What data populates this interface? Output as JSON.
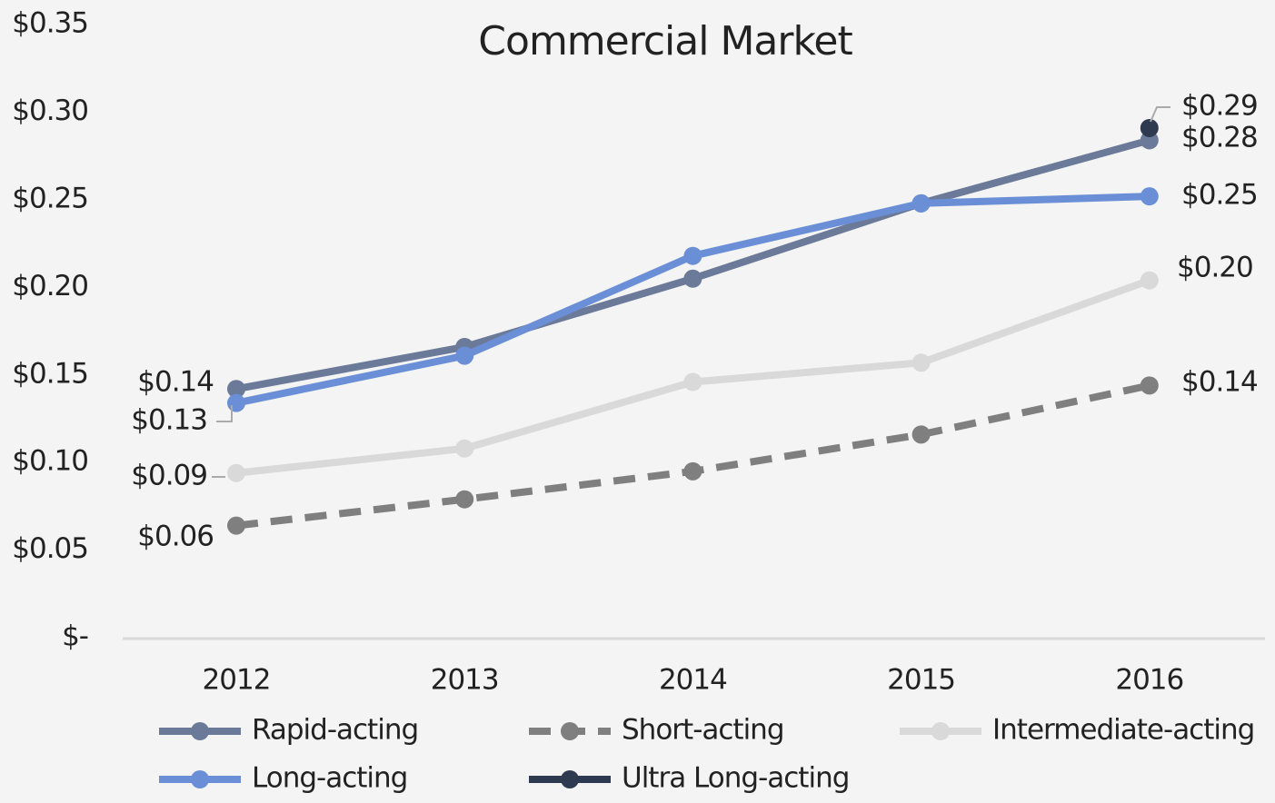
{
  "chart_data": {
    "type": "line",
    "title": "Commercial Market",
    "categories": [
      "2012",
      "2013",
      "2014",
      "2015",
      "2016"
    ],
    "series": [
      {
        "name": "Rapid-acting",
        "color": "#6b7a99",
        "dash": false,
        "values": [
          0.142,
          0.166,
          0.205,
          0.248,
          0.284
        ],
        "value_labels": [
          "$0.14",
          null,
          null,
          null,
          "$0.28"
        ]
      },
      {
        "name": "Short-acting",
        "color": "#7f7f7f",
        "dash": true,
        "values": [
          0.064,
          0.079,
          0.095,
          0.116,
          0.144
        ],
        "value_labels": [
          "$0.06",
          null,
          null,
          null,
          "$0.14"
        ]
      },
      {
        "name": "Intermediate-acting",
        "color": "#d9d9d9",
        "dash": false,
        "values": [
          0.094,
          0.108,
          0.146,
          0.157,
          0.204
        ],
        "value_labels": [
          "$0.09",
          null,
          null,
          null,
          "$0.20"
        ]
      },
      {
        "name": "Long-acting",
        "color": "#6b8fd6",
        "dash": false,
        "values": [
          0.134,
          0.161,
          0.218,
          0.248,
          0.252
        ],
        "value_labels": [
          "$0.13",
          null,
          null,
          null,
          "$0.25"
        ]
      },
      {
        "name": "Ultra Long-acting",
        "color": "#2e3a50",
        "dash": false,
        "values": [
          null,
          null,
          null,
          null,
          0.291
        ],
        "value_labels": [
          null,
          null,
          null,
          null,
          "$0.29"
        ]
      }
    ],
    "ylim": [
      0,
      0.364
    ],
    "yticks": [
      {
        "value": 0,
        "label": "$-"
      },
      {
        "value": 0.05,
        "label": "$0.05"
      },
      {
        "value": 0.1,
        "label": "$0.10"
      },
      {
        "value": 0.15,
        "label": "$0.15"
      },
      {
        "value": 0.2,
        "label": "$0.20"
      },
      {
        "value": 0.25,
        "label": "$0.25"
      },
      {
        "value": 0.3,
        "label": "$0.30"
      },
      {
        "value": 0.35,
        "label": "$0.35"
      }
    ],
    "grid": false,
    "legend": "bottom"
  }
}
